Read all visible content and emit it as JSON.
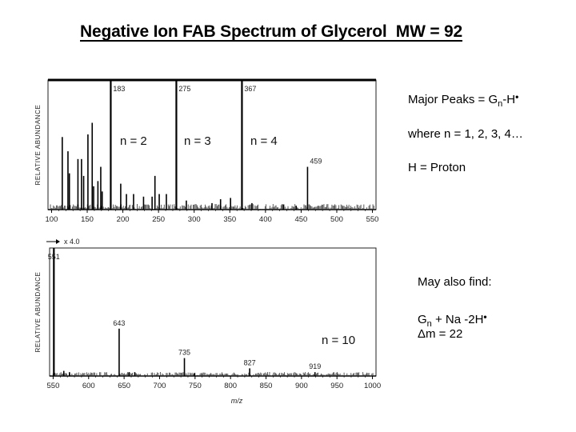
{
  "title": "Negative Ion FAB Spectrum of Glycerol  MW = 92",
  "notes": {
    "major_peaks_prefix": "Major Peaks = G",
    "major_peaks_sub": "n",
    "major_peaks_suffix": "-H",
    "radical_dot": "•",
    "where_line": "where n = 1, 2, 3, 4…",
    "h_line": "H = Proton",
    "may_also_find": "May also find:",
    "adduct_prefix": "G",
    "adduct_sub": "n",
    "adduct_suffix": " + Na -2H",
    "delta_m": "Δm = 22"
  },
  "chart_data": [
    {
      "type": "bar",
      "ylabel": "RELATIVE  ABUNDANCE",
      "xlim": [
        95,
        555
      ],
      "xticks": [
        100,
        150,
        200,
        250,
        300,
        350,
        400,
        450,
        500,
        550
      ],
      "peaks": [
        {
          "x": 115,
          "y": 56
        },
        {
          "x": 123,
          "y": 45
        },
        {
          "x": 125,
          "y": 28
        },
        {
          "x": 137,
          "y": 39
        },
        {
          "x": 142,
          "y": 39
        },
        {
          "x": 145,
          "y": 26
        },
        {
          "x": 151,
          "y": 58
        },
        {
          "x": 157,
          "y": 67
        },
        {
          "x": 159,
          "y": 18
        },
        {
          "x": 165,
          "y": 22
        },
        {
          "x": 169,
          "y": 33
        },
        {
          "x": 171,
          "y": 14
        },
        {
          "x": 183,
          "y": 100
        },
        {
          "x": 197,
          "y": 20
        },
        {
          "x": 205,
          "y": 12
        },
        {
          "x": 215,
          "y": 12
        },
        {
          "x": 229,
          "y": 10
        },
        {
          "x": 241,
          "y": 10
        },
        {
          "x": 245,
          "y": 26
        },
        {
          "x": 251,
          "y": 12
        },
        {
          "x": 261,
          "y": 12
        },
        {
          "x": 275,
          "y": 100
        },
        {
          "x": 289,
          "y": 7
        },
        {
          "x": 325,
          "y": 5
        },
        {
          "x": 337,
          "y": 8
        },
        {
          "x": 351,
          "y": 9
        },
        {
          "x": 367,
          "y": 100
        },
        {
          "x": 381,
          "y": 5
        },
        {
          "x": 425,
          "y": 4
        },
        {
          "x": 443,
          "y": 3
        },
        {
          "x": 459,
          "y": 33
        }
      ],
      "peak_labels": [
        {
          "x": 183,
          "text": "183"
        },
        {
          "x": 275,
          "text": "275"
        },
        {
          "x": 367,
          "text": "367"
        },
        {
          "x": 459,
          "text": "459"
        }
      ],
      "annotations": [
        "n = 2",
        "n = 3",
        "n = 4"
      ]
    },
    {
      "type": "bar",
      "ylabel": "RELATIVE  ABUNDANCE",
      "xlabel": "m/z",
      "scale_label": "x 4.0",
      "xlim": [
        545,
        1005
      ],
      "xticks": [
        550,
        600,
        650,
        700,
        750,
        800,
        850,
        900,
        950,
        1000
      ],
      "xtick_labels": [
        "550",
        "600",
        "650",
        "700",
        "750",
        "800",
        "850",
        "900",
        "950",
        "1000"
      ],
      "peaks": [
        {
          "x": 551,
          "y": 100
        },
        {
          "x": 565,
          "y": 4
        },
        {
          "x": 573,
          "y": 3
        },
        {
          "x": 643,
          "y": 37
        },
        {
          "x": 657,
          "y": 3
        },
        {
          "x": 665,
          "y": 3
        },
        {
          "x": 735,
          "y": 14
        },
        {
          "x": 749,
          "y": 2
        },
        {
          "x": 827,
          "y": 6
        },
        {
          "x": 919,
          "y": 3
        }
      ],
      "peak_labels": [
        {
          "x": 551,
          "text": "551"
        },
        {
          "x": 643,
          "text": "643"
        },
        {
          "x": 735,
          "text": "735"
        },
        {
          "x": 827,
          "text": "827"
        },
        {
          "x": 919,
          "text": "919"
        }
      ],
      "annotations": [
        "n = 10"
      ]
    }
  ]
}
